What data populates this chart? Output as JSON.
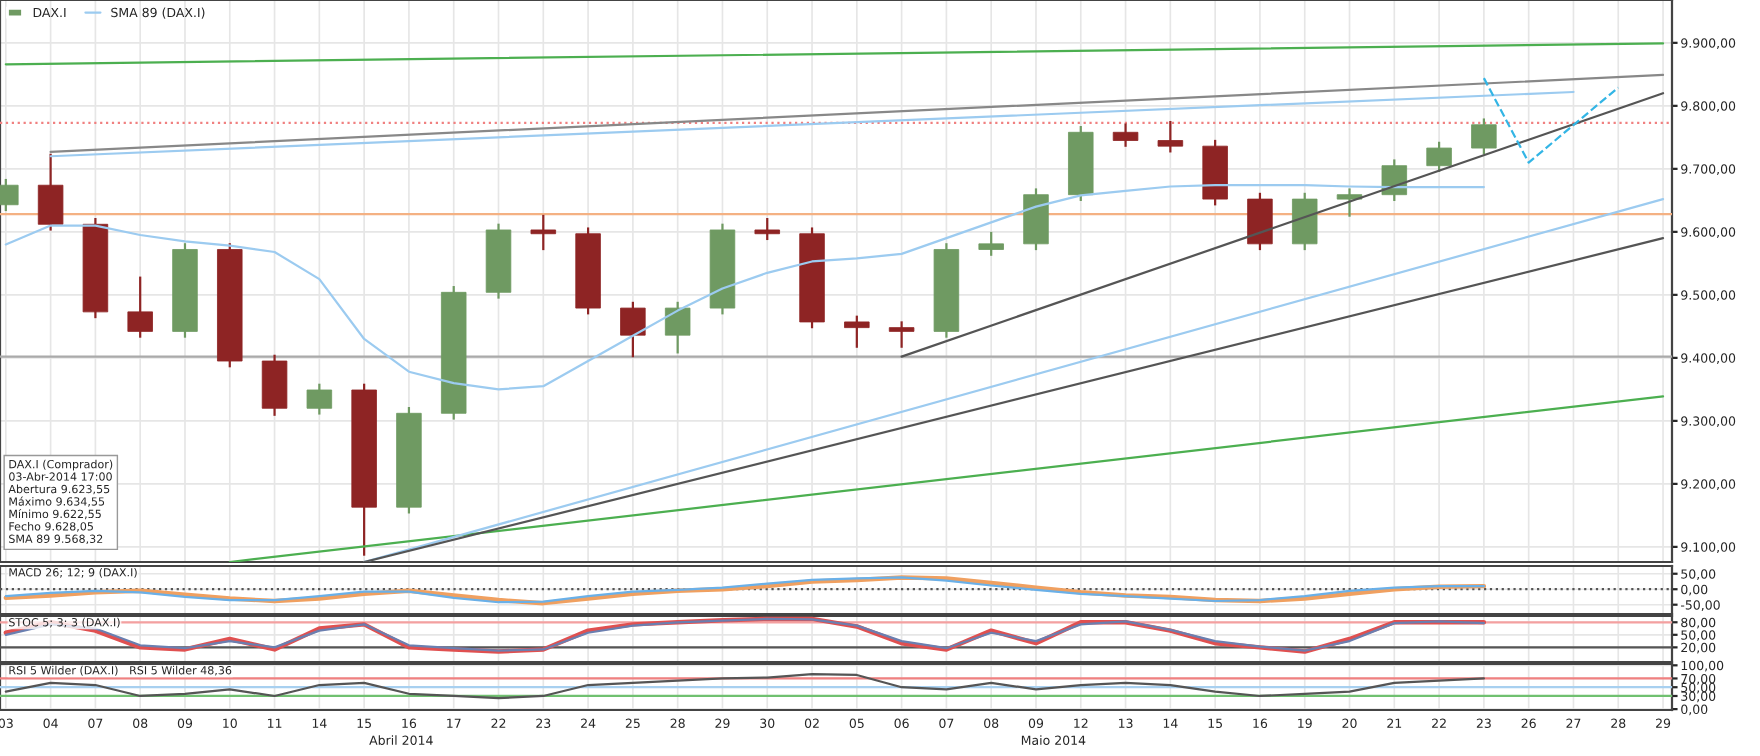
{
  "chart_data": [
    {
      "type": "candlestick",
      "legend": "top left",
      "grid": true,
      "tick_labels": "y",
      "categories": [
        "03",
        "04",
        "07",
        "08",
        "09",
        "10",
        "11",
        "14",
        "15",
        "16",
        "17",
        "22",
        "23",
        "24",
        "25",
        "28",
        "29",
        "30",
        "02",
        "05",
        "06",
        "07",
        "08",
        "09",
        "12",
        "13",
        "14",
        "15",
        "16",
        "19",
        "20",
        "21",
        "22",
        "23",
        "26",
        "27",
        "28",
        "29"
      ],
      "ylim": [
        9076,
        9968
      ],
      "yticks": [
        {
          "value": 9900,
          "label": "9.900,00"
        },
        {
          "value": 9800,
          "label": "9.800,00"
        },
        {
          "value": 9700,
          "label": "9.700,00"
        },
        {
          "value": 9600,
          "label": "9.600,00"
        },
        {
          "value": 9500,
          "label": "9.500,00"
        },
        {
          "value": 9400,
          "label": "9.400,00"
        },
        {
          "value": 9300,
          "label": "9.300,00"
        },
        {
          "value": 9200,
          "label": "9.200,00"
        },
        {
          "value": 9100,
          "label": "9.100,00"
        }
      ],
      "series": [
        {
          "name": "DAX.I",
          "type": "candlestick",
          "ohlc": [
            [
              9643,
              9684,
              9633,
              9674
            ],
            [
              9674,
              9724,
              9602,
              9612
            ],
            [
              9612,
              9622,
              9463,
              9473
            ],
            [
              9473,
              9529,
              9432,
              9442
            ],
            [
              9442,
              9582,
              9432,
              9572
            ],
            [
              9572,
              9582,
              9385,
              9395
            ],
            [
              9395,
              9405,
              9308,
              9320
            ],
            [
              9320,
              9359,
              9310,
              9349
            ],
            [
              9349,
              9359,
              9086,
              9163
            ],
            [
              9163,
              9322,
              9153,
              9312
            ],
            [
              9312,
              9514,
              9302,
              9504
            ],
            [
              9504,
              9613,
              9494,
              9603
            ],
            [
              9603,
              9627,
              9571,
              9597
            ],
            [
              9597,
              9607,
              9469,
              9479
            ],
            [
              9479,
              9489,
              9401,
              9436
            ],
            [
              9436,
              9489,
              9407,
              9479
            ],
            [
              9479,
              9613,
              9469,
              9603
            ],
            [
              9603,
              9622,
              9587,
              9597
            ],
            [
              9597,
              9607,
              9447,
              9457
            ],
            [
              9457,
              9467,
              9416,
              9448
            ],
            [
              9448,
              9458,
              9416,
              9442
            ],
            [
              9442,
              9582,
              9432,
              9572
            ],
            [
              9572,
              9600,
              9562,
              9581
            ],
            [
              9581,
              9669,
              9571,
              9659
            ],
            [
              9659,
              9768,
              9649,
              9758
            ],
            [
              9758,
              9772,
              9735,
              9745
            ],
            [
              9745,
              9776,
              9726,
              9736
            ],
            [
              9736,
              9746,
              9642,
              9652
            ],
            [
              9652,
              9662,
              9571,
              9581
            ],
            [
              9581,
              9662,
              9571,
              9652
            ],
            [
              9652,
              9669,
              9624,
              9659
            ],
            [
              9659,
              9715,
              9649,
              9705
            ],
            [
              9705,
              9743,
              9695,
              9733
            ],
            [
              9733,
              9780,
              9723,
              9770
            ],
            null,
            null,
            null,
            null
          ],
          "colors": [
            "#6f9a62",
            "#8e2424",
            "#8e2424",
            "#8e2424",
            "#6f9a62",
            "#8e2424",
            "#8e2424",
            "#6f9a62",
            "#8e2424",
            "#6f9a62",
            "#6f9a62",
            "#6f9a62",
            "#8e2424",
            "#8e2424",
            "#8e2424",
            "#6f9a62",
            "#6f9a62",
            "#8e2424",
            "#8e2424",
            "#8e2424",
            "#8e2424",
            "#6f9a62",
            "#6f9a62",
            "#6f9a62",
            "#6f9a62",
            "#8e2424",
            "#8e2424",
            "#8e2424",
            "#8e2424",
            "#6f9a62",
            "#6f9a62",
            "#6f9a62",
            "#6f9a62",
            "#6f9a62",
            null,
            null,
            null,
            null
          ]
        },
        {
          "name": "SMA 89 (DAX.I)",
          "type": "line",
          "color": "#9ccbf0",
          "values": [
            9580,
            9610,
            9610,
            9595,
            9585,
            9578,
            9568,
            9525,
            9430,
            9378,
            9360,
            9350,
            9355,
            9395,
            9435,
            9475,
            9510,
            9535,
            9553,
            9558,
            9565,
            9590,
            9615,
            9640,
            9658,
            9665,
            9672,
            9674,
            9674,
            9674,
            9672,
            9671,
            9671,
            9671,
            null,
            null,
            null,
            null
          ]
        },
        {
          "type": "line",
          "color": "#4caf50",
          "values": [
            9866,
            null,
            null,
            null,
            null,
            null,
            null,
            null,
            null,
            null,
            null,
            null,
            null,
            null,
            null,
            null,
            null,
            null,
            null,
            null,
            null,
            null,
            null,
            null,
            null,
            null,
            null,
            null,
            null,
            null,
            null,
            null,
            null,
            null,
            null,
            null,
            null,
            9899
          ]
        },
        {
          "type": "line",
          "color": "#888888",
          "values": [
            null,
            9727,
            null,
            null,
            null,
            null,
            null,
            null,
            null,
            null,
            null,
            null,
            null,
            null,
            null,
            null,
            null,
            null,
            null,
            null,
            null,
            null,
            null,
            null,
            null,
            null,
            null,
            null,
            null,
            null,
            null,
            null,
            null,
            null,
            null,
            null,
            null,
            9849
          ]
        },
        {
          "type": "line",
          "color": "#9ccbf0",
          "values": [
            null,
            9720,
            null,
            null,
            null,
            null,
            null,
            null,
            null,
            null,
            null,
            null,
            null,
            null,
            null,
            null,
            null,
            null,
            null,
            null,
            null,
            null,
            null,
            null,
            null,
            null,
            null,
            null,
            null,
            null,
            null,
            null,
            null,
            null,
            null,
            9822,
            null,
            null
          ]
        },
        {
          "type": "line",
          "color": "#4caf50",
          "values": [
            null,
            null,
            null,
            null,
            null,
            9076,
            null,
            null,
            null,
            null,
            null,
            null,
            null,
            null,
            null,
            null,
            null,
            null,
            null,
            null,
            null,
            null,
            null,
            null,
            null,
            null,
            null,
            null,
            null,
            null,
            null,
            null,
            null,
            null,
            null,
            null,
            null,
            9339
          ]
        },
        {
          "type": "line",
          "color": "#9ccbf0",
          "values": [
            null,
            null,
            null,
            null,
            null,
            null,
            null,
            null,
            9076,
            null,
            null,
            null,
            null,
            null,
            null,
            null,
            null,
            null,
            null,
            null,
            null,
            null,
            null,
            null,
            null,
            null,
            null,
            null,
            null,
            null,
            null,
            null,
            null,
            null,
            null,
            null,
            null,
            9652
          ]
        },
        {
          "type": "line",
          "color": "#555555",
          "values": [
            null,
            null,
            null,
            null,
            null,
            null,
            null,
            null,
            9076,
            null,
            null,
            null,
            null,
            null,
            null,
            null,
            null,
            null,
            null,
            null,
            null,
            null,
            null,
            null,
            null,
            null,
            null,
            null,
            null,
            null,
            null,
            null,
            null,
            null,
            null,
            null,
            null,
            9590
          ]
        },
        {
          "type": "line",
          "color": "#555555",
          "values": [
            null,
            null,
            null,
            null,
            null,
            null,
            null,
            null,
            null,
            null,
            null,
            null,
            null,
            null,
            null,
            null,
            null,
            null,
            null,
            null,
            9402,
            null,
            null,
            null,
            null,
            null,
            null,
            null,
            null,
            null,
            null,
            null,
            null,
            null,
            null,
            null,
            null,
            9820
          ]
        },
        {
          "type": "line",
          "color": "#33b5e5",
          "line_style": "dashed",
          "values": [
            null,
            null,
            null,
            null,
            null,
            null,
            null,
            null,
            null,
            null,
            null,
            null,
            null,
            null,
            null,
            null,
            null,
            null,
            null,
            null,
            null,
            null,
            null,
            null,
            null,
            null,
            null,
            null,
            null,
            null,
            null,
            null,
            null,
            9844,
            9710,
            null,
            9829,
            null
          ]
        }
      ],
      "ref_lines": [
        {
          "axis": "y",
          "value": 9773,
          "label": null,
          "color": "#f08080",
          "line_style": "dotted"
        },
        {
          "axis": "y",
          "value": 9628,
          "label": null,
          "color": "#f4b183"
        },
        {
          "axis": "y",
          "value": 9402,
          "label": null,
          "color": "#aaaaaa"
        }
      ],
      "annotations": [
        "DAX.I (Comprador)",
        "03-Abr-2014 17:00",
        "Abertura 9.623,55",
        "Máximo 9.634,55",
        "Mínimo 9.622,55",
        "Fecho 9.628,05",
        "SMA 89 9.568,32"
      ]
    },
    {
      "type": "line",
      "grid": true,
      "tick_labels": "y",
      "ylim": [
        -80,
        75
      ],
      "categories": [
        "03",
        "04",
        "07",
        "08",
        "09",
        "10",
        "11",
        "14",
        "15",
        "16",
        "17",
        "22",
        "23",
        "24",
        "25",
        "28",
        "29",
        "30",
        "02",
        "05",
        "06",
        "07",
        "08",
        "09",
        "12",
        "13",
        "14",
        "15",
        "16",
        "19",
        "20",
        "21",
        "22",
        "23",
        "26",
        "27",
        "28",
        "29"
      ],
      "yticks": [
        {
          "value": 50,
          "label": "50,00"
        },
        {
          "value": 0,
          "label": "0,00"
        },
        {
          "value": -50,
          "label": "-50,00"
        }
      ],
      "series": [
        {
          "color": "#f0a060",
          "values": [
            -28,
            -20,
            -10,
            -5,
            -18,
            -30,
            -38,
            -30,
            -15,
            -5,
            -20,
            -35,
            -45,
            -30,
            -15,
            -5,
            0,
            10,
            25,
            30,
            38,
            35,
            20,
            5,
            -10,
            -20,
            -25,
            -35,
            -38,
            -30,
            -15,
            0,
            8,
            10,
            null,
            null,
            null,
            null
          ]
        },
        {
          "color": "#6ab0e8",
          "values": [
            -22,
            -12,
            -5,
            -10,
            -25,
            -35,
            -35,
            -22,
            -8,
            -8,
            -28,
            -42,
            -40,
            -22,
            -8,
            -2,
            5,
            18,
            30,
            35,
            38,
            28,
            12,
            -2,
            -15,
            -22,
            -30,
            -38,
            -35,
            -22,
            -5,
            5,
            10,
            10,
            null,
            null,
            null,
            null
          ]
        }
      ],
      "ref_lines": [
        {
          "axis": "y",
          "value": 0,
          "label": null,
          "color": "#555555",
          "line_style": "dotted"
        }
      ],
      "annotations": [
        "MACD 26; 12; 9 (DAX.I)"
      ]
    },
    {
      "type": "line",
      "grid": true,
      "tick_labels": "y",
      "ylim": [
        -15,
        95
      ],
      "categories": [
        "03",
        "04",
        "07",
        "08",
        "09",
        "10",
        "11",
        "14",
        "15",
        "16",
        "17",
        "22",
        "23",
        "24",
        "25",
        "28",
        "29",
        "30",
        "02",
        "05",
        "06",
        "07",
        "08",
        "09",
        "12",
        "13",
        "14",
        "15",
        "16",
        "19",
        "20",
        "21",
        "22",
        "23",
        "26",
        "27",
        "28",
        "29"
      ],
      "yticks": [
        {
          "value": 80,
          "label": "80,00"
        },
        {
          "value": 50,
          "label": "50,00"
        },
        {
          "value": 20,
          "label": "20,00"
        }
      ],
      "series": [
        {
          "color": "#e05050",
          "values": [
            55,
            80,
            60,
            20,
            15,
            40,
            15,
            65,
            75,
            20,
            15,
            10,
            15,
            60,
            75,
            80,
            85,
            88,
            88,
            70,
            30,
            15,
            60,
            30,
            80,
            80,
            60,
            30,
            20,
            10,
            40,
            80,
            80,
            80,
            null,
            null,
            null,
            null
          ]
        },
        {
          "color": "#6a7fb0",
          "values": [
            50,
            75,
            65,
            25,
            18,
            35,
            20,
            60,
            75,
            25,
            18,
            12,
            15,
            55,
            72,
            80,
            84,
            88,
            87,
            72,
            35,
            18,
            55,
            35,
            75,
            82,
            62,
            35,
            22,
            12,
            35,
            78,
            82,
            78,
            null,
            null,
            null,
            null
          ]
        }
      ],
      "ref_lines": [
        {
          "axis": "y",
          "value": 80,
          "label": null,
          "color": "#f4a0a0"
        },
        {
          "axis": "y",
          "value": 20,
          "label": null,
          "color": "#555555"
        }
      ],
      "annotations": [
        "STOC 5; 3; 3 (DAX.I)"
      ]
    },
    {
      "type": "line",
      "grid": true,
      "ylim": [
        -2,
        103
      ],
      "categories": [
        "03",
        "04",
        "07",
        "08",
        "09",
        "10",
        "11",
        "14",
        "15",
        "16",
        "17",
        "22",
        "23",
        "24",
        "25",
        "28",
        "29",
        "30",
        "02",
        "05",
        "06",
        "07",
        "08",
        "09",
        "12",
        "13",
        "14",
        "15",
        "16",
        "19",
        "20",
        "21",
        "22",
        "23",
        "26",
        "27",
        "28",
        "29"
      ],
      "yticks": [
        {
          "value": 100,
          "label": "100,00"
        },
        {
          "value": 70,
          "label": "70,00"
        },
        {
          "value": 50,
          "label": "50,00"
        },
        {
          "value": 30,
          "label": "30,00"
        },
        {
          "value": 0,
          "label": "0,00"
        }
      ],
      "series": [
        {
          "color": "#555555",
          "values": [
            40,
            60,
            55,
            30,
            35,
            45,
            30,
            55,
            60,
            35,
            30,
            25,
            30,
            55,
            60,
            65,
            70,
            72,
            80,
            78,
            50,
            45,
            60,
            45,
            55,
            60,
            55,
            40,
            30,
            35,
            40,
            60,
            65,
            70,
            null,
            null,
            null,
            null
          ]
        }
      ],
      "ref_lines": [
        {
          "axis": "y",
          "value": 70,
          "label": null,
          "color": "#f08080"
        },
        {
          "axis": "y",
          "value": 50,
          "label": null,
          "color": "#a8d0f0"
        },
        {
          "axis": "y",
          "value": 30,
          "label": null,
          "color": "#70c070"
        }
      ],
      "annotations": [
        "RSI 5 Wilder (DAX.I)",
        "RSI 5 Wilder 48,36",
        "Abril 2014",
        "Maio 2014"
      ]
    }
  ]
}
